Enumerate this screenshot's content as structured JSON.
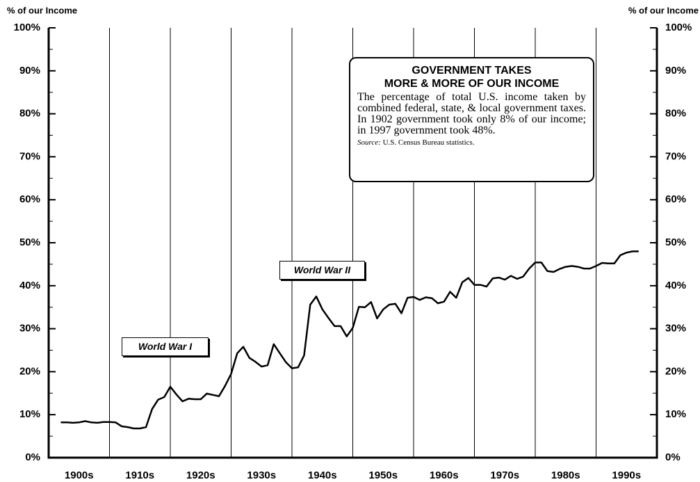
{
  "chart_data": {
    "type": "line",
    "y_axis_label_left": "% of our Income",
    "y_axis_label_right": "% of our Income",
    "xlim": [
      1900,
      2000
    ],
    "ylim": [
      0,
      100
    ],
    "yticks": [
      {
        "value": 0,
        "label": "0%"
      },
      {
        "value": 10,
        "label": "10%"
      },
      {
        "value": 20,
        "label": "20%"
      },
      {
        "value": 30,
        "label": "30%"
      },
      {
        "value": 40,
        "label": "40%"
      },
      {
        "value": 50,
        "label": "50%"
      },
      {
        "value": 60,
        "label": "60%"
      },
      {
        "value": 70,
        "label": "70%"
      },
      {
        "value": 80,
        "label": "80%"
      },
      {
        "value": 90,
        "label": "90%"
      },
      {
        "value": 100,
        "label": "100%"
      }
    ],
    "yminor_ticks": [
      5,
      15,
      25,
      35,
      45,
      55,
      65,
      75,
      85,
      95
    ],
    "xgrid": [
      1910,
      1920,
      1930,
      1940,
      1950,
      1960,
      1970,
      1980,
      1990
    ],
    "xticks": [
      {
        "value": 1905,
        "label": "1900s"
      },
      {
        "value": 1915,
        "label": "1910s"
      },
      {
        "value": 1925,
        "label": "1920s"
      },
      {
        "value": 1935,
        "label": "1930s"
      },
      {
        "value": 1945,
        "label": "1940s"
      },
      {
        "value": 1955,
        "label": "1950s"
      },
      {
        "value": 1965,
        "label": "1960s"
      },
      {
        "value": 1975,
        "label": "1970s"
      },
      {
        "value": 1985,
        "label": "1980s"
      },
      {
        "value": 1995,
        "label": "1990s"
      }
    ],
    "grid": true,
    "series": [
      {
        "name": "Government taxes as % of income",
        "color": "#000000",
        "x": [
          1902,
          1903,
          1904,
          1905,
          1906,
          1907,
          1908,
          1909,
          1910,
          1911,
          1912,
          1913,
          1914,
          1915,
          1916,
          1917,
          1918,
          1919,
          1920,
          1921,
          1922,
          1923,
          1924,
          1925,
          1926,
          1927,
          1928,
          1929,
          1930,
          1931,
          1932,
          1933,
          1934,
          1935,
          1936,
          1937,
          1938,
          1939,
          1940,
          1941,
          1942,
          1943,
          1944,
          1945,
          1946,
          1947,
          1948,
          1949,
          1950,
          1951,
          1952,
          1953,
          1954,
          1955,
          1956,
          1957,
          1958,
          1959,
          1960,
          1961,
          1962,
          1963,
          1964,
          1965,
          1966,
          1967,
          1968,
          1969,
          1970,
          1971,
          1972,
          1973,
          1974,
          1975,
          1976,
          1977,
          1978,
          1979,
          1980,
          1981,
          1982,
          1983,
          1984,
          1985,
          1986,
          1987,
          1988,
          1989,
          1990,
          1991,
          1992,
          1993,
          1994,
          1995,
          1996,
          1997
        ],
        "values": [
          8.2,
          8.2,
          8.1,
          8.2,
          8.5,
          8.2,
          8.1,
          8.3,
          8.3,
          8.2,
          7.3,
          7.1,
          6.8,
          6.8,
          7.1,
          11.3,
          13.5,
          14.1,
          16.5,
          14.7,
          13.1,
          13.7,
          13.6,
          13.6,
          14.9,
          14.6,
          14.3,
          16.7,
          19.5,
          24.3,
          25.8,
          23.2,
          22.3,
          21.2,
          21.5,
          26.4,
          24.3,
          22.2,
          20.8,
          21.0,
          23.8,
          35.6,
          37.5,
          34.5,
          32.5,
          30.6,
          30.6,
          28.2,
          30.2,
          35.1,
          35.0,
          36.2,
          32.4,
          34.5,
          35.6,
          35.8,
          33.6,
          37.2,
          37.4,
          36.7,
          37.3,
          37.1,
          35.9,
          36.3,
          38.6,
          37.2,
          40.8,
          41.8,
          40.2,
          40.2,
          39.8,
          41.7,
          41.9,
          41.4,
          42.3,
          41.6,
          42.1,
          44.0,
          45.4,
          45.4,
          43.4,
          43.2,
          43.9,
          44.4,
          44.6,
          44.4,
          44.0,
          44.0,
          44.6,
          45.3,
          45.2,
          45.2,
          47.1,
          47.7,
          48.0,
          48.0
        ]
      }
    ],
    "annotations": [
      "World War I",
      "World War II"
    ],
    "info_box": {
      "title_lines": [
        "GOVERNMENT TAKES",
        "MORE & MORE OF OUR INCOME"
      ],
      "body": "The percentage of total U.S. income taken by combined federal, state, & local government taxes. In 1902 government took only 8% of our income; in 1997 government took 48%.",
      "source_label": "Source:",
      "source_text": " U.S. Census Bureau statistics."
    }
  }
}
